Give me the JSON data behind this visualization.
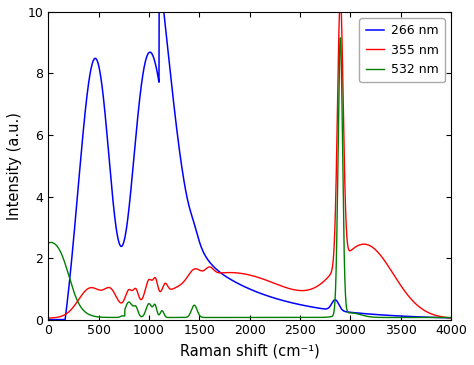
{
  "title": "",
  "xlabel": "Raman shift (cm⁻¹)",
  "ylabel": "Intensity (a.u.)",
  "xlim": [
    0,
    4000
  ],
  "ylim": [
    0,
    10
  ],
  "yticks": [
    0,
    2,
    4,
    6,
    8,
    10
  ],
  "xticks": [
    0,
    500,
    1000,
    1500,
    2000,
    2500,
    3000,
    3500,
    4000
  ],
  "legend": [
    "266 nm",
    "355 nm",
    "532 nm"
  ],
  "colors": {
    "blue": "#0000FF",
    "red": "#FF0000",
    "green": "#008000"
  },
  "background": "#ffffff"
}
